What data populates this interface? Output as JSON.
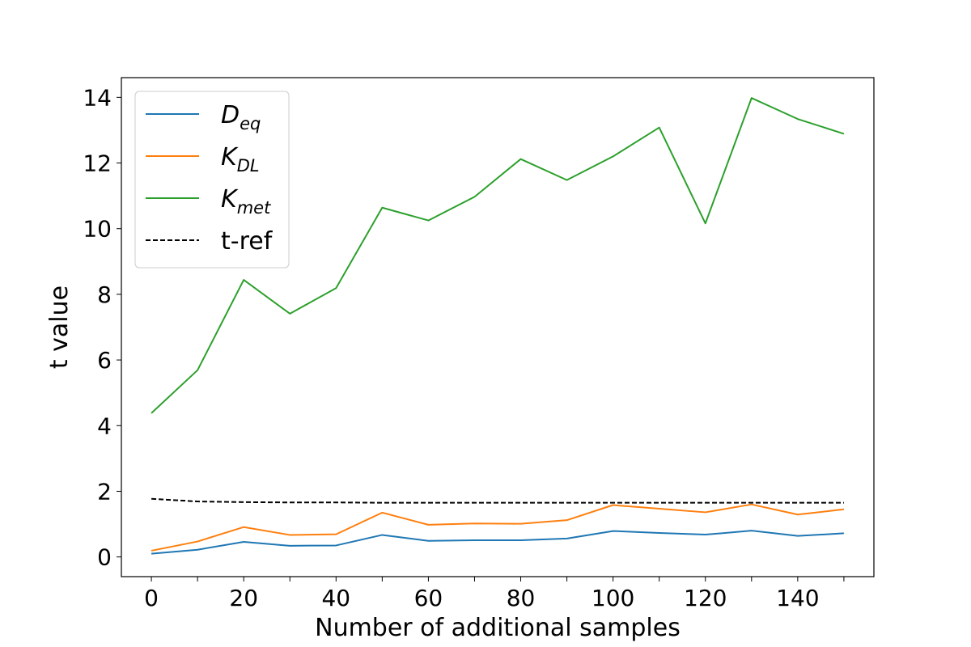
{
  "chart_data": {
    "type": "line",
    "xlabel": "Number of additional samples",
    "ylabel": "t value",
    "xlim": [
      -6.5,
      156.5
    ],
    "ylim": [
      -0.6,
      14.6
    ],
    "x_ticks": [
      "0",
      "20",
      "40",
      "60",
      "80",
      "100",
      "120",
      "140"
    ],
    "y_ticks": [
      "0",
      "2",
      "4",
      "6",
      "8",
      "10",
      "12",
      "14"
    ],
    "grid": false,
    "legend_position": "top-left",
    "x": [
      0,
      10,
      20,
      30,
      40,
      50,
      60,
      70,
      80,
      90,
      100,
      110,
      120,
      130,
      140,
      150
    ],
    "series": [
      {
        "name": "D",
        "name_subscript": "eq",
        "color": "#1f77b4",
        "dash": "solid",
        "values": [
          0.1,
          0.22,
          0.46,
          0.34,
          0.35,
          0.67,
          0.49,
          0.51,
          0.51,
          0.56,
          0.79,
          0.73,
          0.68,
          0.8,
          0.64,
          0.72
        ]
      },
      {
        "name": "K",
        "name_subscript": "DL",
        "color": "#ff7f0e",
        "dash": "solid",
        "values": [
          0.19,
          0.47,
          0.91,
          0.67,
          0.69,
          1.35,
          0.98,
          1.02,
          1.01,
          1.12,
          1.58,
          1.47,
          1.36,
          1.6,
          1.29,
          1.45
        ]
      },
      {
        "name": "K",
        "name_subscript": "met",
        "color": "#2ca02c",
        "dash": "solid",
        "values": [
          4.38,
          5.69,
          8.44,
          7.41,
          8.19,
          10.64,
          10.25,
          10.97,
          12.12,
          11.48,
          12.2,
          13.08,
          10.16,
          13.98,
          13.34,
          12.89
        ]
      },
      {
        "name": "t-ref",
        "name_subscript": "",
        "color": "#000000",
        "dash": "dashed",
        "values": [
          1.77,
          1.69,
          1.67,
          1.66,
          1.66,
          1.65,
          1.65,
          1.65,
          1.65,
          1.65,
          1.65,
          1.65,
          1.65,
          1.65,
          1.65,
          1.65
        ]
      }
    ]
  }
}
